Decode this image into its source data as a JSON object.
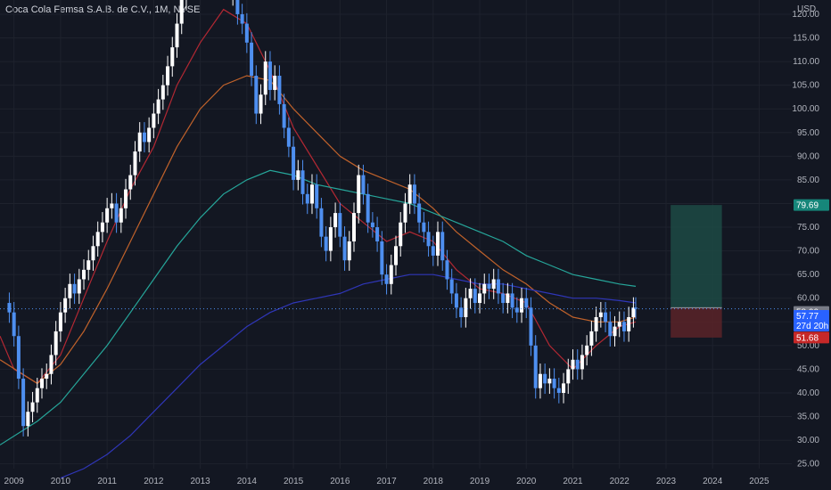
{
  "header": {
    "title": "Coca Cola Femsa S.A.B. de C.V., 1M, NYSE",
    "currency": "USD"
  },
  "colors": {
    "background": "#131722",
    "up": "#ffffff",
    "down": "#4e8ff0",
    "ma_red": "#b22833",
    "ma_orange": "#c0622b",
    "ma_teal": "#26a69a",
    "ma_navy": "#2f36b8",
    "target_zone": "#1d4a44",
    "stop_zone": "#5a2328",
    "tag_target": "#16867a",
    "tag_stop": "#c62828",
    "tag_entry": "#787b86",
    "tag_price": "#2962ff"
  },
  "axis": {
    "y_ticks": [
      "120.00",
      "115.00",
      "110.00",
      "105.00",
      "100.00",
      "95.00",
      "90.00",
      "85.00",
      "80.00",
      "75.00",
      "70.00",
      "65.00",
      "60.00",
      "55.00",
      "50.00",
      "45.00",
      "40.00",
      "35.00",
      "30.00",
      "25.00"
    ],
    "x_ticks": [
      "2009",
      "2010",
      "2011",
      "2012",
      "2013",
      "2014",
      "2015",
      "2016",
      "2017",
      "2018",
      "2019",
      "2020",
      "2021",
      "2022",
      "2023",
      "2024",
      "2025"
    ]
  },
  "tags": {
    "target": "79.69",
    "entry": "58.00",
    "price": "57.77",
    "countdown": "27d 20h",
    "stop": "51.68"
  },
  "chart_data": {
    "type": "candlestick",
    "title": "Coca Cola Femsa S.A.B. de C.V., 1M, NYSE",
    "ylabel": "USD",
    "ylim": [
      24,
      123
    ],
    "xlim": [
      2008.7,
      2025.7
    ],
    "grid": true,
    "closes": [
      {
        "t": 2008.8,
        "c": 59
      },
      {
        "t": 2008.9,
        "c": 57
      },
      {
        "t": 2009.0,
        "c": 52
      },
      {
        "t": 2009.1,
        "c": 43
      },
      {
        "t": 2009.2,
        "c": 33
      },
      {
        "t": 2009.3,
        "c": 36
      },
      {
        "t": 2009.4,
        "c": 38
      },
      {
        "t": 2009.5,
        "c": 41
      },
      {
        "t": 2009.6,
        "c": 43
      },
      {
        "t": 2009.7,
        "c": 44
      },
      {
        "t": 2009.8,
        "c": 48
      },
      {
        "t": 2009.9,
        "c": 53
      },
      {
        "t": 2010.0,
        "c": 57
      },
      {
        "t": 2010.1,
        "c": 60
      },
      {
        "t": 2010.2,
        "c": 63
      },
      {
        "t": 2010.3,
        "c": 61
      },
      {
        "t": 2010.4,
        "c": 64
      },
      {
        "t": 2010.5,
        "c": 66
      },
      {
        "t": 2010.6,
        "c": 68
      },
      {
        "t": 2010.7,
        "c": 71
      },
      {
        "t": 2010.8,
        "c": 74
      },
      {
        "t": 2010.9,
        "c": 76
      },
      {
        "t": 2011.0,
        "c": 79
      },
      {
        "t": 2011.1,
        "c": 80
      },
      {
        "t": 2011.2,
        "c": 76
      },
      {
        "t": 2011.3,
        "c": 79
      },
      {
        "t": 2011.4,
        "c": 83
      },
      {
        "t": 2011.5,
        "c": 86
      },
      {
        "t": 2011.6,
        "c": 91
      },
      {
        "t": 2011.7,
        "c": 95
      },
      {
        "t": 2011.8,
        "c": 93
      },
      {
        "t": 2011.9,
        "c": 96
      },
      {
        "t": 2012.0,
        "c": 99
      },
      {
        "t": 2012.1,
        "c": 102
      },
      {
        "t": 2012.2,
        "c": 105
      },
      {
        "t": 2012.3,
        "c": 109
      },
      {
        "t": 2012.4,
        "c": 113
      },
      {
        "t": 2012.5,
        "c": 118
      },
      {
        "t": 2012.6,
        "c": 123
      },
      {
        "t": 2012.7,
        "c": 124
      },
      {
        "t": 2013.7,
        "c": 124
      },
      {
        "t": 2013.8,
        "c": 120
      },
      {
        "t": 2013.9,
        "c": 118
      },
      {
        "t": 2014.0,
        "c": 114
      },
      {
        "t": 2014.1,
        "c": 107
      },
      {
        "t": 2014.2,
        "c": 99
      },
      {
        "t": 2014.3,
        "c": 103
      },
      {
        "t": 2014.4,
        "c": 110
      },
      {
        "t": 2014.5,
        "c": 104
      },
      {
        "t": 2014.6,
        "c": 107
      },
      {
        "t": 2014.7,
        "c": 101
      },
      {
        "t": 2014.8,
        "c": 96
      },
      {
        "t": 2014.9,
        "c": 92
      },
      {
        "t": 2015.0,
        "c": 85
      },
      {
        "t": 2015.1,
        "c": 87
      },
      {
        "t": 2015.2,
        "c": 82
      },
      {
        "t": 2015.3,
        "c": 80
      },
      {
        "t": 2015.4,
        "c": 84
      },
      {
        "t": 2015.5,
        "c": 79
      },
      {
        "t": 2015.6,
        "c": 73
      },
      {
        "t": 2015.7,
        "c": 70
      },
      {
        "t": 2015.8,
        "c": 75
      },
      {
        "t": 2015.9,
        "c": 78
      },
      {
        "t": 2016.0,
        "c": 73
      },
      {
        "t": 2016.1,
        "c": 68
      },
      {
        "t": 2016.2,
        "c": 72
      },
      {
        "t": 2016.3,
        "c": 78
      },
      {
        "t": 2016.4,
        "c": 86
      },
      {
        "t": 2016.5,
        "c": 82
      },
      {
        "t": 2016.6,
        "c": 76
      },
      {
        "t": 2016.7,
        "c": 75
      },
      {
        "t": 2016.8,
        "c": 72
      },
      {
        "t": 2016.9,
        "c": 65
      },
      {
        "t": 2017.0,
        "c": 63
      },
      {
        "t": 2017.1,
        "c": 67
      },
      {
        "t": 2017.2,
        "c": 71
      },
      {
        "t": 2017.3,
        "c": 76
      },
      {
        "t": 2017.4,
        "c": 80
      },
      {
        "t": 2017.5,
        "c": 84
      },
      {
        "t": 2017.6,
        "c": 80
      },
      {
        "t": 2017.7,
        "c": 76
      },
      {
        "t": 2017.8,
        "c": 74
      },
      {
        "t": 2017.9,
        "c": 71
      },
      {
        "t": 2018.0,
        "c": 69
      },
      {
        "t": 2018.1,
        "c": 74
      },
      {
        "t": 2018.2,
        "c": 68
      },
      {
        "t": 2018.3,
        "c": 64
      },
      {
        "t": 2018.4,
        "c": 61
      },
      {
        "t": 2018.5,
        "c": 58
      },
      {
        "t": 2018.6,
        "c": 56
      },
      {
        "t": 2018.7,
        "c": 60
      },
      {
        "t": 2018.8,
        "c": 62
      },
      {
        "t": 2018.9,
        "c": 59
      },
      {
        "t": 2019.0,
        "c": 61
      },
      {
        "t": 2019.1,
        "c": 63
      },
      {
        "t": 2019.2,
        "c": 62
      },
      {
        "t": 2019.3,
        "c": 64
      },
      {
        "t": 2019.4,
        "c": 61
      },
      {
        "t": 2019.5,
        "c": 59
      },
      {
        "t": 2019.6,
        "c": 61
      },
      {
        "t": 2019.7,
        "c": 58
      },
      {
        "t": 2019.8,
        "c": 57
      },
      {
        "t": 2019.9,
        "c": 60
      },
      {
        "t": 2020.0,
        "c": 58
      },
      {
        "t": 2020.1,
        "c": 50
      },
      {
        "t": 2020.2,
        "c": 41
      },
      {
        "t": 2020.3,
        "c": 44
      },
      {
        "t": 2020.4,
        "c": 42
      },
      {
        "t": 2020.5,
        "c": 43
      },
      {
        "t": 2020.6,
        "c": 41
      },
      {
        "t": 2020.7,
        "c": 40
      },
      {
        "t": 2020.8,
        "c": 42
      },
      {
        "t": 2020.9,
        "c": 45
      },
      {
        "t": 2021.0,
        "c": 47
      },
      {
        "t": 2021.1,
        "c": 45
      },
      {
        "t": 2021.2,
        "c": 48
      },
      {
        "t": 2021.3,
        "c": 50
      },
      {
        "t": 2021.4,
        "c": 53
      },
      {
        "t": 2021.5,
        "c": 56
      },
      {
        "t": 2021.6,
        "c": 57
      },
      {
        "t": 2021.7,
        "c": 55
      },
      {
        "t": 2021.8,
        "c": 52
      },
      {
        "t": 2021.9,
        "c": 54
      },
      {
        "t": 2022.0,
        "c": 55
      },
      {
        "t": 2022.1,
        "c": 53
      },
      {
        "t": 2022.2,
        "c": 56
      },
      {
        "t": 2022.3,
        "c": 58
      },
      {
        "t": 2022.35,
        "c": 57.77
      }
    ],
    "moving_averages": [
      {
        "color": "ma_red",
        "points": [
          [
            2008.7,
            52
          ],
          [
            2009.0,
            45
          ],
          [
            2009.5,
            42
          ],
          [
            2010.0,
            48
          ],
          [
            2010.5,
            60
          ],
          [
            2011.0,
            72
          ],
          [
            2011.5,
            83
          ],
          [
            2012.0,
            92
          ],
          [
            2012.5,
            105
          ],
          [
            2013.0,
            114
          ],
          [
            2013.5,
            121
          ],
          [
            2014.0,
            118
          ],
          [
            2014.5,
            108
          ],
          [
            2015.0,
            96
          ],
          [
            2015.5,
            88
          ],
          [
            2016.0,
            80
          ],
          [
            2016.5,
            76
          ],
          [
            2017.0,
            72
          ],
          [
            2017.5,
            74
          ],
          [
            2018.0,
            72
          ],
          [
            2018.5,
            66
          ],
          [
            2019.0,
            62
          ],
          [
            2019.5,
            61
          ],
          [
            2020.0,
            59
          ],
          [
            2020.5,
            50
          ],
          [
            2021.0,
            45
          ],
          [
            2021.5,
            50
          ],
          [
            2022.0,
            54
          ],
          [
            2022.35,
            55
          ]
        ]
      },
      {
        "color": "ma_orange",
        "points": [
          [
            2008.7,
            47
          ],
          [
            2009.5,
            42
          ],
          [
            2010.0,
            46
          ],
          [
            2010.5,
            53
          ],
          [
            2011.0,
            62
          ],
          [
            2011.5,
            72
          ],
          [
            2012.0,
            82
          ],
          [
            2012.5,
            92
          ],
          [
            2013.0,
            100
          ],
          [
            2013.5,
            105
          ],
          [
            2014.0,
            107
          ],
          [
            2014.5,
            106
          ],
          [
            2015.0,
            100
          ],
          [
            2015.5,
            95
          ],
          [
            2016.0,
            90
          ],
          [
            2016.5,
            87
          ],
          [
            2017.0,
            85
          ],
          [
            2017.5,
            83
          ],
          [
            2018.0,
            79
          ],
          [
            2018.5,
            74
          ],
          [
            2019.0,
            70
          ],
          [
            2019.5,
            66
          ],
          [
            2020.0,
            63
          ],
          [
            2020.5,
            59
          ],
          [
            2021.0,
            56
          ],
          [
            2021.5,
            55
          ],
          [
            2022.0,
            55
          ],
          [
            2022.35,
            56
          ]
        ]
      },
      {
        "color": "ma_teal",
        "points": [
          [
            2008.7,
            29
          ],
          [
            2009.5,
            34
          ],
          [
            2010.0,
            38
          ],
          [
            2010.5,
            44
          ],
          [
            2011.0,
            50
          ],
          [
            2011.5,
            57
          ],
          [
            2012.0,
            64
          ],
          [
            2012.5,
            71
          ],
          [
            2013.0,
            77
          ],
          [
            2013.5,
            82
          ],
          [
            2014.0,
            85
          ],
          [
            2014.5,
            87
          ],
          [
            2015.0,
            86
          ],
          [
            2015.5,
            84
          ],
          [
            2016.0,
            83
          ],
          [
            2016.5,
            82
          ],
          [
            2017.0,
            81
          ],
          [
            2017.5,
            80
          ],
          [
            2018.0,
            78
          ],
          [
            2018.5,
            76
          ],
          [
            2019.0,
            74
          ],
          [
            2019.5,
            72
          ],
          [
            2020.0,
            69
          ],
          [
            2020.5,
            67
          ],
          [
            2021.0,
            65
          ],
          [
            2021.5,
            64
          ],
          [
            2022.0,
            63
          ],
          [
            2022.35,
            62.5
          ]
        ]
      },
      {
        "color": "ma_navy",
        "points": [
          [
            2010.0,
            22
          ],
          [
            2010.5,
            24
          ],
          [
            2011.0,
            27
          ],
          [
            2011.5,
            31
          ],
          [
            2012.0,
            36
          ],
          [
            2012.5,
            41
          ],
          [
            2013.0,
            46
          ],
          [
            2013.5,
            50
          ],
          [
            2014.0,
            54
          ],
          [
            2014.5,
            57
          ],
          [
            2015.0,
            59
          ],
          [
            2015.5,
            60
          ],
          [
            2016.0,
            61
          ],
          [
            2016.5,
            63
          ],
          [
            2017.0,
            64
          ],
          [
            2017.5,
            65
          ],
          [
            2018.0,
            65
          ],
          [
            2018.5,
            64
          ],
          [
            2019.0,
            63
          ],
          [
            2019.5,
            63
          ],
          [
            2020.0,
            62
          ],
          [
            2020.5,
            61
          ],
          [
            2021.0,
            60
          ],
          [
            2021.5,
            60
          ],
          [
            2022.0,
            59.5
          ],
          [
            2022.35,
            59
          ]
        ]
      }
    ],
    "position": {
      "start": 2023.1,
      "end": 2024.2,
      "target": 79.69,
      "entry": 58.0,
      "stop": 51.68
    },
    "current_price": 57.77
  }
}
